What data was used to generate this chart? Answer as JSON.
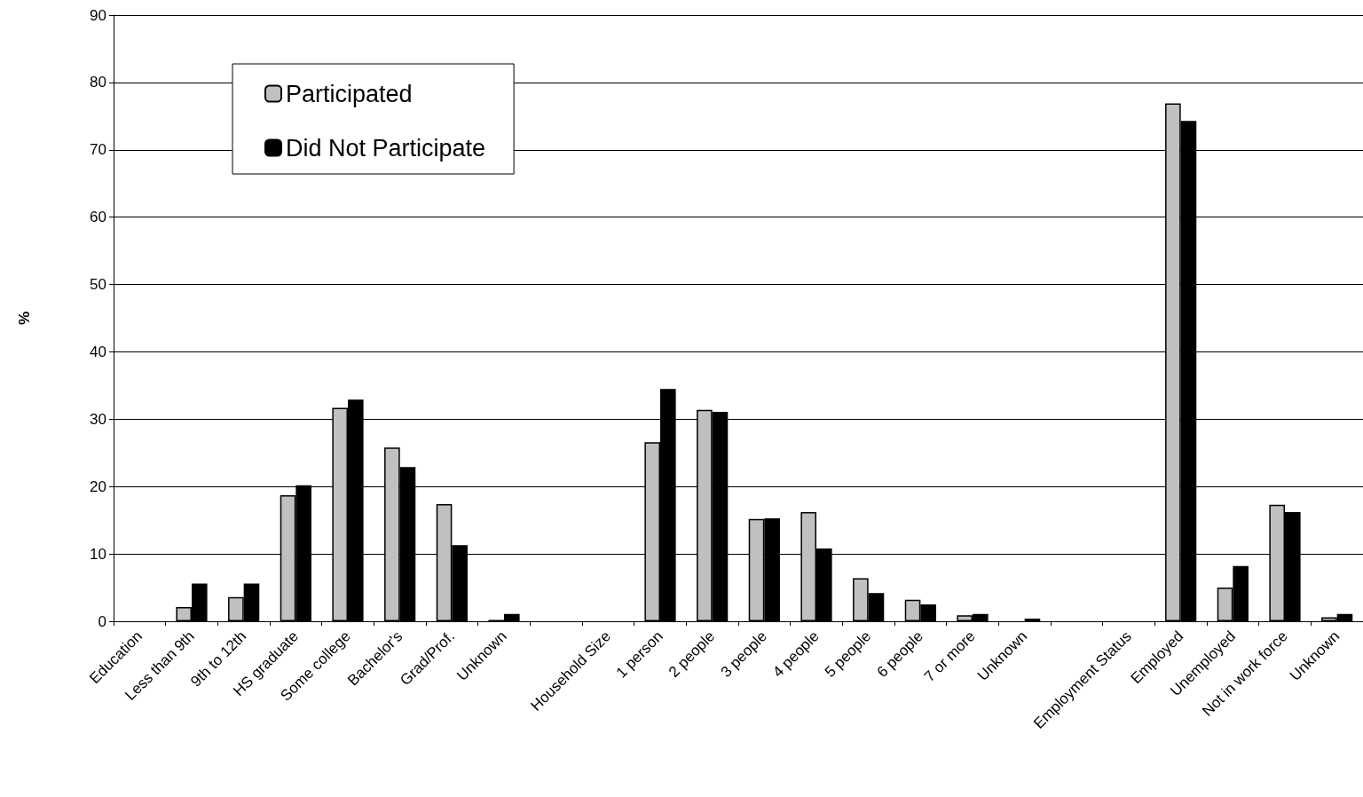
{
  "chart_data": {
    "type": "bar",
    "ylabel": "%",
    "categories": [
      "Education",
      "Less than 9th",
      "9th to 12th",
      "HS graduate",
      "Some college",
      "Bachelor's",
      "Grad/Prof.",
      "Unknown",
      null,
      "Household Size",
      "1 person",
      "2 people",
      "3 people",
      "4 people",
      "5 people",
      "6 people",
      "7 or more",
      "Unknown",
      null,
      "Employment Status",
      "Employed",
      "Unemployed",
      "Not in work force",
      "Unknown"
    ],
    "series": [
      {
        "name": "Participated",
        "color": "#c0c0c0",
        "values": [
          null,
          2.1,
          3.6,
          18.7,
          31.7,
          25.8,
          17.4,
          0.2,
          null,
          null,
          26.6,
          31.4,
          15.2,
          16.2,
          6.4,
          3.2,
          0.9,
          null,
          null,
          null,
          76.9,
          5.0,
          17.3,
          0.6
        ]
      },
      {
        "name": "Did Not Participate",
        "color": "#000000",
        "values": [
          null,
          5.6,
          5.6,
          20.2,
          32.9,
          22.9,
          11.3,
          1.1,
          null,
          null,
          34.5,
          31.1,
          15.3,
          10.8,
          4.2,
          2.5,
          1.1,
          0.4,
          null,
          null,
          74.3,
          8.2,
          16.2,
          1.1
        ]
      }
    ],
    "ylim": [
      0,
      90
    ],
    "yticks": [
      0,
      10,
      20,
      30,
      40,
      50,
      60,
      70,
      80,
      90
    ],
    "grid": "y",
    "legend": "top left"
  }
}
